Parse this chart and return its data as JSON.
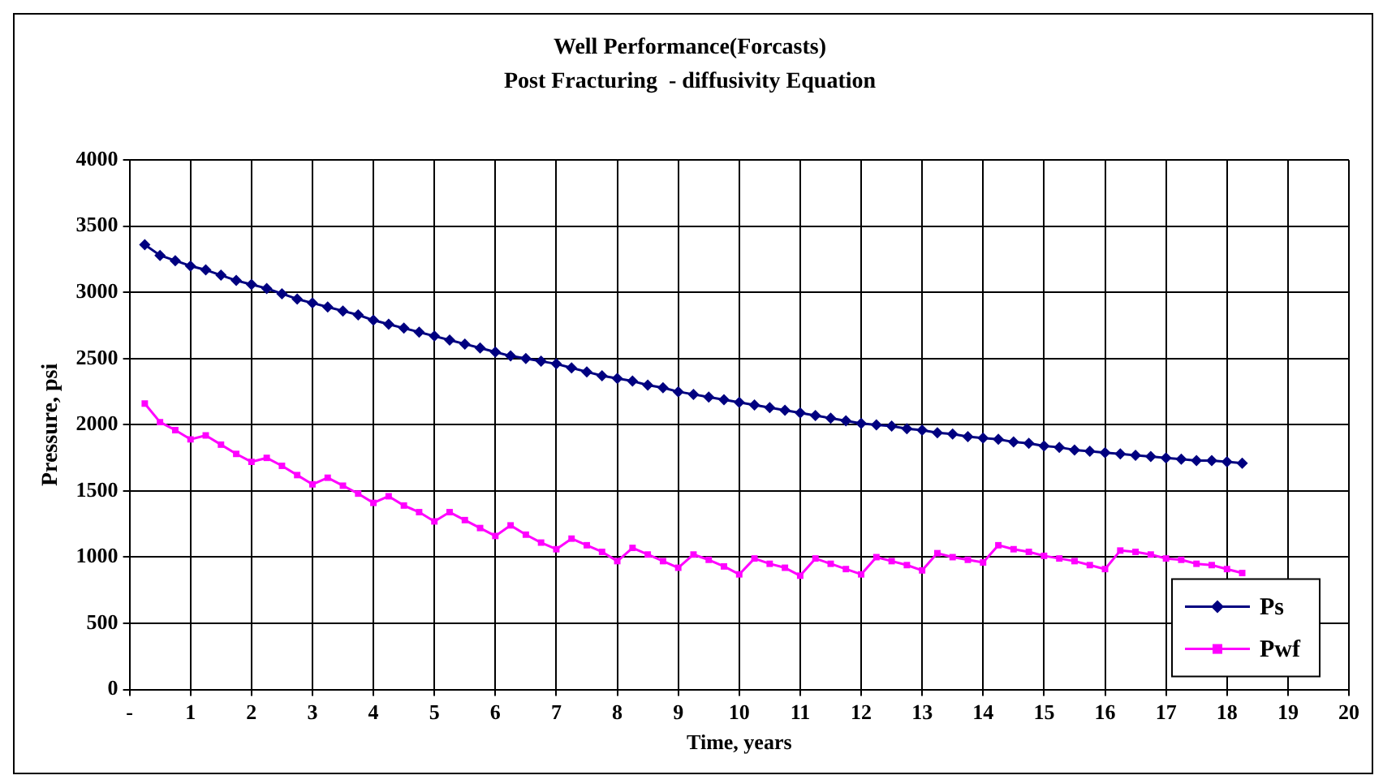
{
  "chart_data": {
    "type": "line",
    "title": "Well Performance(Forcasts)",
    "subtitle": "Post Fracturing  - diffusivity Equation",
    "xlabel": "Time, years",
    "ylabel": "Pressure, psi",
    "x": [
      0.25,
      0.5,
      0.75,
      1,
      1.25,
      1.5,
      1.75,
      2,
      2.25,
      2.5,
      2.75,
      3,
      3.25,
      3.5,
      3.75,
      4,
      4.25,
      4.5,
      4.75,
      5,
      5.25,
      5.5,
      5.75,
      6,
      6.25,
      6.5,
      6.75,
      7,
      7.25,
      7.5,
      7.75,
      8,
      8.25,
      8.5,
      8.75,
      9,
      9.25,
      9.5,
      9.75,
      10,
      10.25,
      10.5,
      10.75,
      11,
      11.25,
      11.5,
      11.75,
      12,
      12.25,
      12.5,
      12.75,
      13,
      13.25,
      13.5,
      13.75,
      14,
      14.25,
      14.5,
      14.75,
      15,
      15.25,
      15.5,
      15.75,
      16,
      16.25,
      16.5,
      16.75,
      17,
      17.25,
      17.5,
      17.75,
      18,
      18.25
    ],
    "series": [
      {
        "name": "Ps",
        "color": "#000080",
        "marker": "diamond",
        "values": [
          3360,
          3280,
          3240,
          3200,
          3170,
          3130,
          3090,
          3060,
          3030,
          2990,
          2950,
          2920,
          2890,
          2860,
          2830,
          2790,
          2760,
          2730,
          2700,
          2670,
          2640,
          2610,
          2580,
          2550,
          2520,
          2500,
          2480,
          2460,
          2430,
          2400,
          2370,
          2350,
          2330,
          2300,
          2280,
          2250,
          2230,
          2210,
          2190,
          2170,
          2150,
          2130,
          2110,
          2090,
          2070,
          2050,
          2030,
          2010,
          2000,
          1990,
          1970,
          1960,
          1940,
          1930,
          1910,
          1900,
          1890,
          1870,
          1860,
          1840,
          1830,
          1810,
          1800,
          1790,
          1780,
          1770,
          1760,
          1750,
          1740,
          1730,
          1730,
          1720,
          1710
        ]
      },
      {
        "name": "Pwf",
        "color": "#ff00ff",
        "marker": "square",
        "values": [
          2160,
          2020,
          1960,
          1890,
          1920,
          1850,
          1780,
          1720,
          1750,
          1690,
          1620,
          1550,
          1600,
          1540,
          1480,
          1410,
          1460,
          1390,
          1340,
          1270,
          1340,
          1280,
          1220,
          1160,
          1240,
          1170,
          1110,
          1060,
          1140,
          1090,
          1040,
          970,
          1070,
          1020,
          970,
          920,
          1020,
          980,
          930,
          870,
          990,
          950,
          920,
          860,
          990,
          950,
          910,
          870,
          1000,
          970,
          940,
          900,
          1030,
          1000,
          980,
          960,
          1090,
          1060,
          1040,
          1010,
          990,
          970,
          940,
          910,
          1050,
          1040,
          1020,
          990,
          980,
          950,
          940,
          910,
          880
        ]
      }
    ],
    "xlim": [
      0,
      20
    ],
    "xticks": [
      {
        "value": 0,
        "label": "-"
      },
      1,
      2,
      3,
      4,
      5,
      6,
      7,
      8,
      9,
      10,
      11,
      12,
      13,
      14,
      15,
      16,
      17,
      18,
      19,
      20
    ],
    "ylim": [
      0,
      4000
    ],
    "yticks": [
      0,
      500,
      1000,
      1500,
      2000,
      2500,
      3000,
      3500,
      4000
    ],
    "grid": true,
    "legend": "bottom right"
  }
}
